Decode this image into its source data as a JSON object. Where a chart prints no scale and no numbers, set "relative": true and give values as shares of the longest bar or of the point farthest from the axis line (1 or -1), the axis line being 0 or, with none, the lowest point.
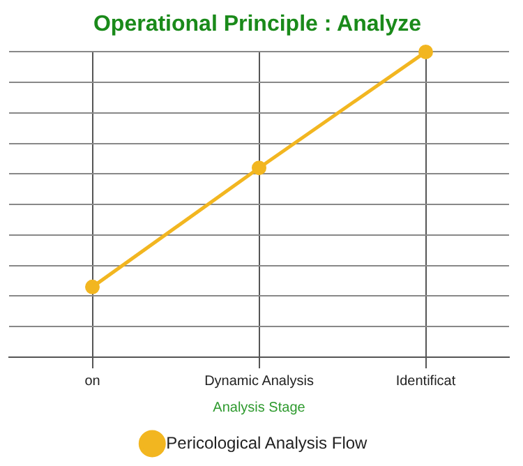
{
  "chart_data": {
    "type": "line",
    "title": "Operational Principle : Analyze",
    "xlabel": "Analysis Stage",
    "categories": [
      "on",
      "Dynamic Analysis",
      "Identificat"
    ],
    "relative": true,
    "series": [
      {
        "name": "Pericological Analysis Flow",
        "color": "#f2b620",
        "values": [
          0.23,
          0.62,
          1
        ]
      }
    ],
    "grid": true,
    "legend": "bottom",
    "marker": "circle",
    "line_style": "solid"
  }
}
